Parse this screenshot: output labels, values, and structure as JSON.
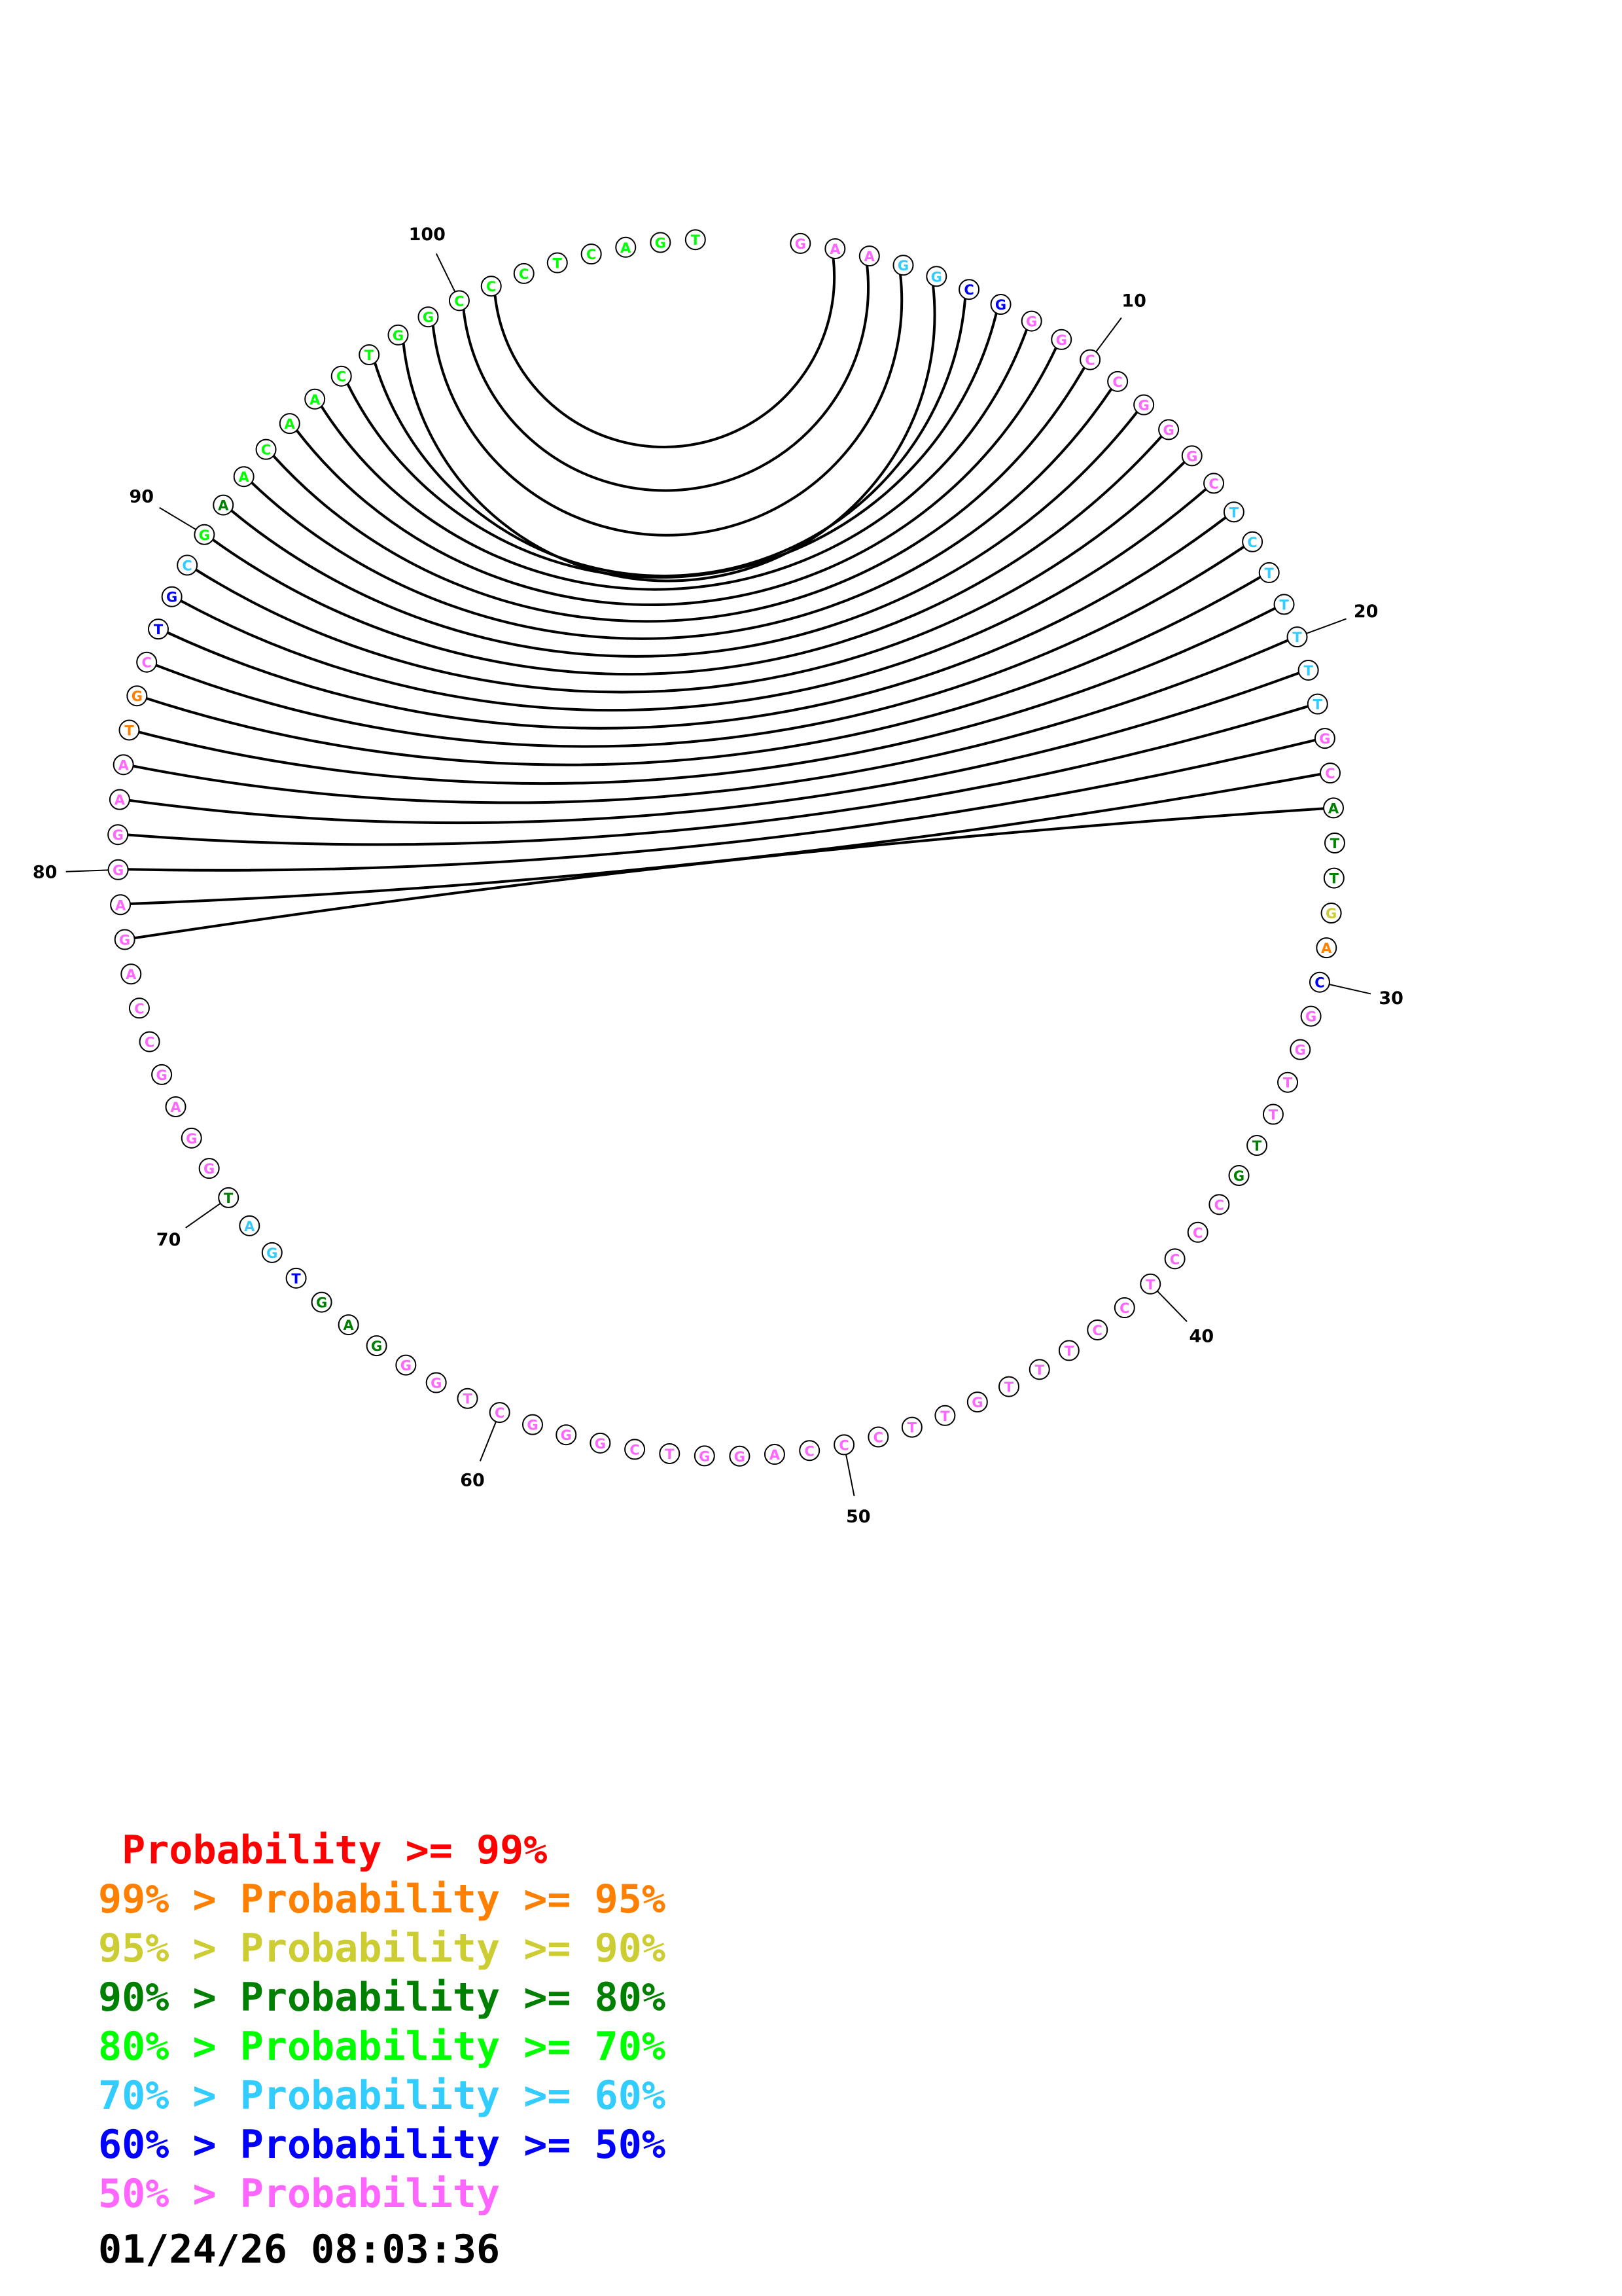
{
  "diagram": {
    "sequence": [
      "G",
      "A",
      "A",
      "G",
      "G",
      "C",
      "G",
      "G",
      "G",
      "C",
      "C",
      "G",
      "G",
      "G",
      "C",
      "T",
      "C",
      "T",
      "T",
      "T",
      "T",
      "T",
      "G",
      "C",
      "A",
      "T",
      "T",
      "G",
      "A",
      "C",
      "G",
      "G",
      "T",
      "T",
      "T",
      "G",
      "C",
      "C",
      "C",
      "T",
      "C",
      "C",
      "T",
      "T",
      "T",
      "G",
      "T",
      "T",
      "C",
      "C",
      "C",
      "A",
      "G",
      "G",
      "T",
      "C",
      "G",
      "G",
      "G",
      "C",
      "T",
      "G",
      "G",
      "G",
      "A",
      "G",
      "T",
      "G",
      "A",
      "T",
      "G",
      "G",
      "A",
      "G",
      "C",
      "C",
      "A",
      "G",
      "A",
      "G",
      "G",
      "A",
      "A",
      "T",
      "G",
      "C",
      "T",
      "G",
      "C",
      "G",
      "A",
      "A",
      "C",
      "A",
      "A",
      "C",
      "T",
      "G",
      "G",
      "C",
      "C",
      "C",
      "T",
      "C",
      "A",
      "G",
      "T"
    ],
    "probability_class": [
      7,
      7,
      7,
      5,
      5,
      6,
      6,
      7,
      7,
      7,
      7,
      7,
      7,
      7,
      7,
      5,
      5,
      5,
      5,
      5,
      5,
      5,
      7,
      7,
      3,
      3,
      3,
      2,
      1,
      6,
      7,
      7,
      7,
      7,
      3,
      3,
      7,
      7,
      7,
      7,
      7,
      7,
      7,
      7,
      7,
      7,
      7,
      7,
      7,
      7,
      7,
      7,
      7,
      7,
      7,
      7,
      7,
      7,
      7,
      7,
      7,
      7,
      7,
      3,
      3,
      3,
      6,
      5,
      5,
      3,
      7,
      7,
      7,
      7,
      7,
      7,
      7,
      7,
      7,
      7,
      7,
      7,
      7,
      1,
      1,
      7,
      6,
      6,
      5,
      4,
      3,
      4,
      4,
      4,
      4,
      4,
      4,
      4,
      4,
      4,
      4,
      4,
      4,
      4,
      4,
      4,
      4,
      4
    ],
    "pairs": [
      [
        2,
        101
      ],
      [
        3,
        100
      ],
      [
        4,
        99
      ],
      [
        5,
        98
      ],
      [
        6,
        97
      ],
      [
        7,
        96
      ],
      [
        8,
        95
      ],
      [
        9,
        94
      ],
      [
        10,
        93
      ],
      [
        11,
        92
      ],
      [
        12,
        91
      ],
      [
        13,
        90
      ],
      [
        14,
        89
      ],
      [
        15,
        88
      ],
      [
        16,
        87
      ],
      [
        17,
        86
      ],
      [
        18,
        85
      ],
      [
        19,
        84
      ],
      [
        20,
        83
      ],
      [
        21,
        82
      ],
      [
        22,
        81
      ],
      [
        23,
        80
      ],
      [
        24,
        79
      ],
      [
        25,
        78
      ]
    ],
    "tick_labels": [
      "10",
      "20",
      "30",
      "40",
      "50",
      "60",
      "70",
      "80",
      "90",
      "100"
    ]
  },
  "legend": {
    "colors": [
      "#ff0000",
      "#ff8000",
      "#cccc33",
      "#008000",
      "#00ff00",
      "#33ccff",
      "#0000ff",
      "#ff66ff"
    ],
    "lines": [
      {
        "lower": "",
        "middle": "Probability",
        "upper": ">= 99%"
      },
      {
        "lower": "99% >",
        "middle": "Probability",
        "upper": ">= 95%"
      },
      {
        "lower": "95% >",
        "middle": "Probability",
        "upper": ">= 90%"
      },
      {
        "lower": "90% >",
        "middle": "Probability",
        "upper": ">= 80%"
      },
      {
        "lower": "80% >",
        "middle": "Probability",
        "upper": ">= 70%"
      },
      {
        "lower": "70% >",
        "middle": "Probability",
        "upper": ">= 60%"
      },
      {
        "lower": "60% >",
        "middle": "Probability",
        "upper": ">= 50%"
      },
      {
        "lower": "50% >",
        "middle": "Probability",
        "upper": ""
      }
    ]
  },
  "timestamp": "01/24/26 08:03:36"
}
